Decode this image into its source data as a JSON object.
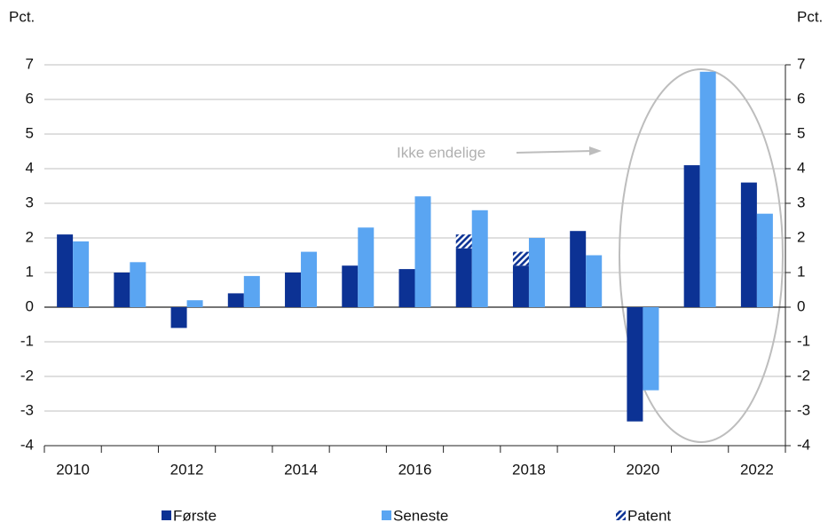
{
  "chart_data": {
    "type": "bar",
    "y_label": "Pct.",
    "y2_label": "Pct.",
    "annotation": "Ikke endelige",
    "categories": [
      "2010",
      null,
      "2012",
      null,
      "2014",
      null,
      "2016",
      null,
      "2018",
      null,
      "2020",
      null,
      "2022"
    ],
    "series": [
      {
        "name": "Første",
        "color": "#0c3294",
        "values": [
          2.1,
          1.0,
          -0.6,
          0.4,
          1.0,
          1.2,
          1.1,
          1.7,
          1.2,
          2.2,
          -3.3,
          4.1,
          3.6
        ]
      },
      {
        "name": "Seneste",
        "color": "#5aa5f2",
        "values": [
          1.9,
          1.3,
          0.2,
          0.9,
          1.6,
          2.3,
          3.2,
          2.8,
          2.0,
          1.5,
          -2.4,
          6.8,
          2.7
        ]
      },
      {
        "name": "Patent",
        "color": "#0c3294",
        "values": [
          null,
          null,
          null,
          null,
          null,
          null,
          null,
          0.4,
          0.4,
          null,
          null,
          null,
          null
        ]
      }
    ],
    "ylim": [
      -4,
      7
    ],
    "yticks": [
      -4,
      -3,
      -2,
      -1,
      0,
      1,
      2,
      3,
      4,
      5,
      6,
      7
    ],
    "y2lim": [
      -4,
      7
    ],
    "y2ticks": [
      -4,
      -3,
      -2,
      -1,
      0,
      1,
      2,
      3,
      4,
      5,
      6,
      7
    ],
    "grid": true
  }
}
